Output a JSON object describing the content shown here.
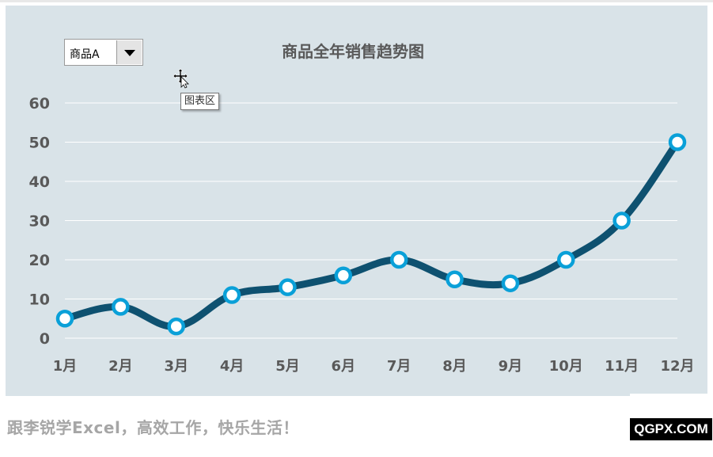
{
  "dropdown": {
    "selected": "商品A"
  },
  "tooltip": {
    "text": "图表区"
  },
  "footer": {
    "text": "跟李锐学Excel，高效工作，快乐生活！"
  },
  "watermark": {
    "text": "QGPX.COM"
  },
  "colors": {
    "background": "#d9e3e8",
    "line": "#0e5170",
    "marker_stroke": "#0aa0d8",
    "marker_fill": "#ffffff",
    "text": "#595959",
    "grid": "#ffffff"
  },
  "chart_data": {
    "type": "line",
    "title": "商品全年销售趋势图",
    "categories": [
      "1月",
      "2月",
      "3月",
      "4月",
      "5月",
      "6月",
      "7月",
      "8月",
      "9月",
      "10月",
      "11月",
      "12月"
    ],
    "values": [
      5,
      8,
      3,
      11,
      13,
      16,
      20,
      15,
      14,
      20,
      30,
      50
    ],
    "ylim": [
      0,
      60
    ],
    "yticks": [
      0,
      10,
      20,
      30,
      40,
      50,
      60
    ],
    "smooth": true,
    "grid": true,
    "legend": "none"
  }
}
